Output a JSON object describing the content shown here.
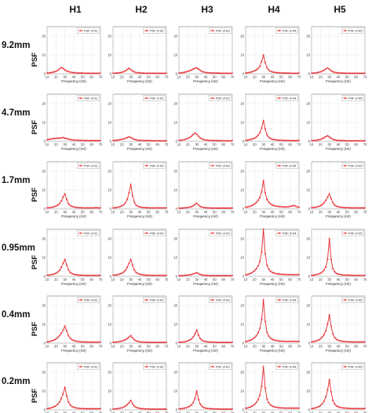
{
  "figure": {
    "columns": [
      "H1",
      "H2",
      "H3",
      "H4",
      "H5"
    ],
    "rows": [
      "9.2mm",
      "4.7mm",
      "1.7mm",
      "0.95mm",
      "0.4mm",
      "0.2mm"
    ],
    "y_axis_label": "PSF",
    "x_axis_label": "Frequency (Hz)"
  },
  "chart_data": {
    "type": "line",
    "layout": "grid 6 rows x 5 columns",
    "series_color": "#e8262b",
    "xlabel": "Frequency (Hz)",
    "ylabel": "PSF",
    "xlim": [
      10,
      70
    ],
    "ylim": [
      0,
      25
    ],
    "xticks": [
      10,
      20,
      30,
      40,
      50,
      60,
      70
    ],
    "yticks": [
      0,
      10,
      20
    ],
    "grid": true,
    "legend_position": "top-right",
    "x": [
      10,
      12,
      14,
      16,
      18,
      20,
      22,
      24,
      26,
      28,
      30,
      32,
      34,
      36,
      38,
      40,
      42,
      44,
      46,
      48,
      50,
      52,
      54,
      56,
      58,
      60,
      62,
      64,
      66,
      68,
      70
    ],
    "panels": [
      {
        "row": "9.2mm",
        "column": "H1",
        "legend": "PSF of H1",
        "values": [
          0.4,
          0.5,
          0.6,
          0.8,
          1.0,
          1.3,
          1.8,
          2.6,
          3.3,
          2.8,
          2.1,
          1.5,
          1.2,
          0.9,
          0.7,
          0.6,
          0.5,
          0.5,
          0.4,
          0.4,
          0.4,
          0.3,
          0.3,
          0.3,
          0.3,
          0.3,
          0.3,
          0.3,
          0.3,
          0.3,
          0.3
        ]
      },
      {
        "row": "9.2mm",
        "column": "H2",
        "legend": "PSF of H2",
        "values": [
          0.3,
          0.3,
          0.4,
          0.5,
          0.6,
          0.8,
          1.1,
          1.6,
          2.3,
          2.9,
          2.2,
          1.5,
          1.0,
          0.7,
          0.5,
          0.5,
          0.4,
          0.4,
          0.3,
          0.3,
          0.3,
          0.3,
          0.3,
          0.3,
          0.3,
          0.3,
          0.3,
          0.3,
          0.3,
          0.3,
          0.3
        ]
      },
      {
        "row": "9.2mm",
        "column": "H3",
        "legend": "PSF of H3",
        "values": [
          0.4,
          0.5,
          0.6,
          0.8,
          1.0,
          1.3,
          1.6,
          2.0,
          2.5,
          3.0,
          3.1,
          2.5,
          1.8,
          1.2,
          0.9,
          0.7,
          0.6,
          0.5,
          0.5,
          0.4,
          0.4,
          0.4,
          0.4,
          0.3,
          0.3,
          0.3,
          0.3,
          0.3,
          0.3,
          0.3,
          0.3
        ]
      },
      {
        "row": "9.2mm",
        "column": "H4",
        "legend": "PSF of H4",
        "values": [
          0.4,
          0.5,
          0.7,
          0.9,
          1.2,
          1.6,
          2.1,
          2.8,
          4.0,
          6.5,
          10.0,
          6.0,
          3.2,
          2.0,
          1.3,
          1.0,
          0.8,
          0.7,
          0.6,
          0.5,
          0.5,
          0.4,
          0.4,
          0.4,
          0.4,
          0.3,
          0.3,
          0.3,
          0.3,
          0.3,
          0.3
        ]
      },
      {
        "row": "9.2mm",
        "column": "H5",
        "legend": "PSF of H5",
        "values": [
          0.3,
          0.4,
          0.5,
          0.6,
          0.8,
          1.0,
          1.4,
          1.9,
          2.6,
          3.1,
          2.4,
          1.6,
          1.1,
          0.8,
          0.6,
          0.5,
          0.4,
          0.4,
          0.4,
          0.3,
          0.3,
          0.3,
          0.3,
          0.3,
          0.3,
          0.3,
          0.3,
          0.3,
          0.3,
          0.3,
          0.3
        ]
      },
      {
        "row": "4.7mm",
        "column": "H1",
        "legend": "PSF of H1",
        "values": [
          0.8,
          1.0,
          1.2,
          1.4,
          1.5,
          1.6,
          1.7,
          1.6,
          1.8,
          2.0,
          1.7,
          1.4,
          1.2,
          1.0,
          0.8,
          0.7,
          0.6,
          0.6,
          0.5,
          0.5,
          0.5,
          0.4,
          0.4,
          0.4,
          0.4,
          0.4,
          0.4,
          0.4,
          0.4,
          0.4,
          0.4
        ]
      },
      {
        "row": "4.7mm",
        "column": "H2",
        "legend": "PSF of H2",
        "values": [
          0.4,
          0.5,
          0.6,
          0.7,
          0.9,
          1.1,
          1.3,
          1.6,
          2.0,
          2.4,
          2.0,
          1.5,
          1.1,
          0.8,
          0.6,
          0.5,
          0.5,
          0.4,
          0.4,
          0.4,
          0.4,
          0.4,
          0.3,
          0.3,
          0.3,
          0.3,
          0.3,
          0.3,
          0.3,
          0.3,
          0.3
        ]
      },
      {
        "row": "4.7mm",
        "column": "H3",
        "legend": "PSF of H3",
        "values": [
          0.5,
          0.6,
          0.7,
          0.9,
          1.2,
          1.5,
          2.0,
          2.7,
          3.6,
          4.4,
          3.8,
          2.7,
          1.8,
          1.2,
          0.9,
          0.7,
          0.6,
          0.5,
          0.5,
          0.4,
          0.4,
          0.4,
          0.4,
          0.4,
          0.3,
          0.3,
          0.3,
          0.3,
          0.3,
          0.3,
          0.3
        ]
      },
      {
        "row": "4.7mm",
        "column": "H4",
        "legend": "PSF of H4",
        "values": [
          0.5,
          0.6,
          0.8,
          1.0,
          1.3,
          1.7,
          2.3,
          3.2,
          4.6,
          7.0,
          11.0,
          6.5,
          3.5,
          2.2,
          1.5,
          1.1,
          0.9,
          0.8,
          0.7,
          0.6,
          0.6,
          0.5,
          0.5,
          0.5,
          0.4,
          0.4,
          0.4,
          0.4,
          0.4,
          0.4,
          0.4
        ]
      },
      {
        "row": "4.7mm",
        "column": "H5",
        "legend": "PSF of H5",
        "values": [
          0.3,
          0.4,
          0.5,
          0.6,
          0.8,
          1.0,
          1.4,
          1.9,
          2.5,
          3.0,
          2.3,
          1.6,
          1.1,
          0.8,
          0.6,
          0.5,
          0.4,
          0.4,
          0.4,
          0.3,
          0.3,
          0.3,
          0.3,
          0.3,
          0.3,
          0.3,
          0.3,
          0.3,
          0.3,
          0.3,
          0.3
        ]
      },
      {
        "row": "1.7mm",
        "column": "H1",
        "legend": "PSF of H1",
        "values": [
          0.5,
          0.6,
          0.7,
          0.9,
          1.1,
          1.5,
          2.0,
          2.8,
          4.2,
          6.2,
          8.0,
          5.0,
          2.8,
          1.8,
          1.3,
          1.0,
          0.8,
          0.7,
          0.6,
          0.6,
          0.5,
          0.5,
          0.5,
          0.5,
          0.5,
          0.5,
          0.5,
          0.6,
          0.6,
          0.5,
          0.5
        ]
      },
      {
        "row": "1.7mm",
        "column": "H2",
        "legend": "PSF of H2",
        "values": [
          0.5,
          0.6,
          0.7,
          0.9,
          1.2,
          1.6,
          2.2,
          3.2,
          5.0,
          8.5,
          13.0,
          7.0,
          3.5,
          2.0,
          1.3,
          1.0,
          0.8,
          0.7,
          0.6,
          0.6,
          0.5,
          0.5,
          0.5,
          0.5,
          0.5,
          0.5,
          0.5,
          0.5,
          0.5,
          0.5,
          0.5
        ]
      },
      {
        "row": "1.7mm",
        "column": "H3",
        "legend": "PSF of H3",
        "values": [
          0.3,
          0.4,
          0.4,
          0.5,
          0.6,
          0.7,
          0.9,
          1.2,
          1.6,
          2.3,
          3.0,
          2.0,
          1.3,
          0.9,
          0.7,
          0.6,
          0.5,
          0.5,
          0.4,
          0.4,
          0.4,
          0.4,
          0.4,
          0.4,
          0.4,
          0.4,
          0.4,
          0.4,
          0.4,
          0.4,
          0.4
        ]
      },
      {
        "row": "1.7mm",
        "column": "H4",
        "legend": "PSF of H4",
        "values": [
          0.8,
          1.0,
          1.2,
          1.5,
          2.0,
          2.6,
          3.4,
          4.5,
          6.0,
          9.0,
          15.0,
          8.5,
          5.0,
          3.5,
          2.6,
          2.0,
          1.7,
          1.5,
          1.3,
          1.2,
          1.1,
          1.0,
          1.0,
          1.0,
          1.1,
          1.3,
          1.5,
          1.8,
          1.5,
          1.0,
          0.8
        ]
      },
      {
        "row": "1.7mm",
        "column": "H5",
        "legend": "PSF of H5",
        "values": [
          0.6,
          0.7,
          0.8,
          1.0,
          1.3,
          1.7,
          2.3,
          3.2,
          4.5,
          6.2,
          8.0,
          5.5,
          3.2,
          2.0,
          1.4,
          1.1,
          0.9,
          0.8,
          0.7,
          0.6,
          0.6,
          0.6,
          0.5,
          0.5,
          0.5,
          0.5,
          0.5,
          0.5,
          0.5,
          0.5,
          0.5
        ]
      },
      {
        "row": "0.95mm",
        "column": "H1",
        "legend": "PSF of H1",
        "values": [
          0.6,
          0.7,
          0.8,
          1.0,
          1.3,
          1.7,
          2.3,
          3.2,
          4.8,
          7.0,
          9.0,
          6.0,
          3.4,
          2.1,
          1.5,
          1.1,
          0.9,
          0.8,
          0.7,
          0.6,
          0.6,
          0.5,
          0.5,
          0.5,
          0.5,
          0.5,
          0.5,
          0.5,
          0.5,
          0.5,
          0.5
        ]
      },
      {
        "row": "0.95mm",
        "column": "H2",
        "legend": "PSF of H2",
        "values": [
          0.6,
          0.7,
          0.8,
          1.0,
          1.3,
          1.7,
          2.3,
          3.2,
          4.8,
          7.0,
          9.0,
          6.0,
          3.4,
          2.1,
          1.5,
          1.1,
          0.9,
          0.8,
          0.7,
          0.6,
          0.6,
          0.5,
          0.5,
          0.5,
          0.5,
          0.5,
          0.5,
          0.5,
          0.5,
          0.5,
          0.5
        ]
      },
      {
        "row": "0.95mm",
        "column": "H3",
        "legend": "PSF of H3",
        "values": [
          0.3,
          0.4,
          0.4,
          0.5,
          0.6,
          0.7,
          0.8,
          1.0,
          1.3,
          1.6,
          2.0,
          1.4,
          1.0,
          0.8,
          0.6,
          0.5,
          0.5,
          0.4,
          0.4,
          0.4,
          0.4,
          0.4,
          0.4,
          0.4,
          0.4,
          0.4,
          0.4,
          0.4,
          0.4,
          0.4,
          0.4
        ]
      },
      {
        "row": "0.95mm",
        "column": "H4",
        "legend": "PSF of H4",
        "values": [
          0.8,
          1.0,
          1.3,
          1.7,
          2.3,
          3.0,
          4.0,
          5.5,
          8.0,
          13.0,
          25.0,
          12.0,
          6.0,
          3.8,
          2.7,
          2.1,
          1.7,
          1.5,
          1.3,
          1.2,
          1.1,
          1.0,
          1.0,
          0.9,
          0.9,
          0.9,
          0.9,
          0.9,
          0.9,
          0.9,
          0.9
        ]
      },
      {
        "row": "0.95mm",
        "column": "H5",
        "legend": "PSF of H5",
        "values": [
          0.5,
          0.6,
          0.8,
          1.0,
          1.3,
          1.7,
          2.3,
          3.3,
          5.0,
          9.0,
          20.0,
          9.0,
          4.0,
          2.4,
          1.6,
          1.2,
          1.0,
          0.8,
          0.7,
          0.7,
          0.6,
          0.6,
          0.6,
          0.5,
          0.5,
          0.5,
          0.5,
          0.5,
          0.5,
          0.5,
          0.5
        ]
      },
      {
        "row": "0.4mm",
        "column": "H1",
        "legend": "PSF of H1",
        "values": [
          0.6,
          0.8,
          1.0,
          1.3,
          1.7,
          2.2,
          3.0,
          4.0,
          5.2,
          6.8,
          9.0,
          6.5,
          4.0,
          2.6,
          1.8,
          1.4,
          1.1,
          0.9,
          0.8,
          0.7,
          0.6,
          0.6,
          0.6,
          0.5,
          0.5,
          0.5,
          0.5,
          0.5,
          0.5,
          0.5,
          0.5
        ]
      },
      {
        "row": "0.4mm",
        "column": "H2",
        "legend": "PSF of H2",
        "values": [
          0.4,
          0.5,
          0.6,
          0.7,
          0.9,
          1.1,
          1.4,
          1.8,
          2.4,
          3.2,
          4.0,
          2.8,
          1.8,
          1.2,
          0.9,
          0.7,
          0.6,
          0.5,
          0.5,
          0.4,
          0.4,
          0.4,
          0.4,
          0.4,
          0.4,
          0.4,
          0.4,
          0.4,
          0.4,
          0.4,
          0.4
        ]
      },
      {
        "row": "0.4mm",
        "column": "H3",
        "legend": "PSF of H3",
        "values": [
          0.4,
          0.5,
          0.6,
          0.7,
          0.9,
          1.2,
          1.6,
          2.2,
          3.2,
          4.8,
          7.0,
          4.2,
          2.4,
          1.5,
          1.1,
          0.8,
          0.7,
          0.6,
          0.5,
          0.5,
          0.5,
          0.4,
          0.4,
          0.4,
          0.4,
          0.4,
          0.4,
          0.4,
          0.4,
          0.4,
          0.4
        ]
      },
      {
        "row": "0.4mm",
        "column": "H4",
        "legend": "PSF of H4",
        "values": [
          0.8,
          1.0,
          1.3,
          1.7,
          2.2,
          2.9,
          3.9,
          5.4,
          7.8,
          12.5,
          23.0,
          11.5,
          5.8,
          3.7,
          2.6,
          2.0,
          1.6,
          1.4,
          1.2,
          1.1,
          1.0,
          1.0,
          0.9,
          0.9,
          0.9,
          0.9,
          0.9,
          0.9,
          0.9,
          0.9,
          0.9
        ]
      },
      {
        "row": "0.4mm",
        "column": "H5",
        "legend": "PSF of H5",
        "values": [
          0.6,
          0.8,
          1.0,
          1.3,
          1.7,
          2.3,
          3.2,
          4.5,
          6.5,
          10.0,
          15.0,
          9.0,
          4.8,
          2.9,
          2.0,
          1.5,
          1.2,
          1.0,
          0.9,
          0.8,
          0.7,
          0.7,
          0.6,
          0.6,
          0.6,
          0.6,
          0.6,
          0.6,
          0.6,
          0.6,
          0.6
        ]
      },
      {
        "row": "0.2mm",
        "column": "H1",
        "legend": "PSF of H1",
        "values": [
          0.6,
          0.8,
          1.0,
          1.3,
          1.7,
          2.2,
          3.0,
          4.2,
          6.0,
          8.5,
          12.0,
          7.5,
          4.2,
          2.6,
          1.8,
          1.4,
          1.1,
          0.9,
          0.8,
          0.7,
          0.7,
          0.6,
          0.6,
          0.6,
          0.6,
          0.6,
          0.6,
          0.6,
          0.6,
          0.6,
          0.6
        ]
      },
      {
        "row": "0.2mm",
        "column": "H2",
        "legend": "PSF of H2",
        "values": [
          0.4,
          0.5,
          0.6,
          0.7,
          0.9,
          1.1,
          1.5,
          2.0,
          2.8,
          3.8,
          5.0,
          3.2,
          2.0,
          1.3,
          1.0,
          0.8,
          0.6,
          0.6,
          0.5,
          0.5,
          0.5,
          0.4,
          0.4,
          0.4,
          0.4,
          0.4,
          0.4,
          0.4,
          0.4,
          0.4,
          0.4
        ]
      },
      {
        "row": "0.2mm",
        "column": "H3",
        "legend": "PSF of H3",
        "values": [
          0.5,
          0.6,
          0.7,
          0.9,
          1.1,
          1.4,
          1.9,
          2.6,
          3.8,
          6.0,
          10.0,
          5.5,
          3.0,
          1.8,
          1.2,
          0.9,
          0.8,
          0.7,
          0.6,
          0.5,
          0.5,
          0.5,
          0.5,
          0.4,
          0.4,
          0.4,
          0.4,
          0.4,
          0.4,
          0.4,
          0.4
        ]
      },
      {
        "row": "0.2mm",
        "column": "H4",
        "legend": "PSF of H4",
        "values": [
          0.8,
          1.0,
          1.3,
          1.7,
          2.2,
          2.9,
          3.9,
          5.4,
          7.8,
          12.5,
          23.0,
          11.5,
          5.8,
          3.7,
          2.6,
          2.0,
          1.6,
          1.4,
          1.2,
          1.1,
          1.0,
          1.0,
          0.9,
          0.9,
          0.9,
          0.9,
          0.9,
          0.9,
          0.9,
          0.9,
          0.9
        ]
      },
      {
        "row": "0.2mm",
        "column": "H5",
        "legend": "PSF of H5",
        "values": [
          0.6,
          0.8,
          1.0,
          1.3,
          1.7,
          2.3,
          3.2,
          4.6,
          6.8,
          10.5,
          16.0,
          9.5,
          5.0,
          3.0,
          2.1,
          1.6,
          1.3,
          1.1,
          1.0,
          0.9,
          0.8,
          0.8,
          0.7,
          0.7,
          0.7,
          0.7,
          0.7,
          0.7,
          0.7,
          0.7,
          0.7
        ]
      }
    ]
  }
}
